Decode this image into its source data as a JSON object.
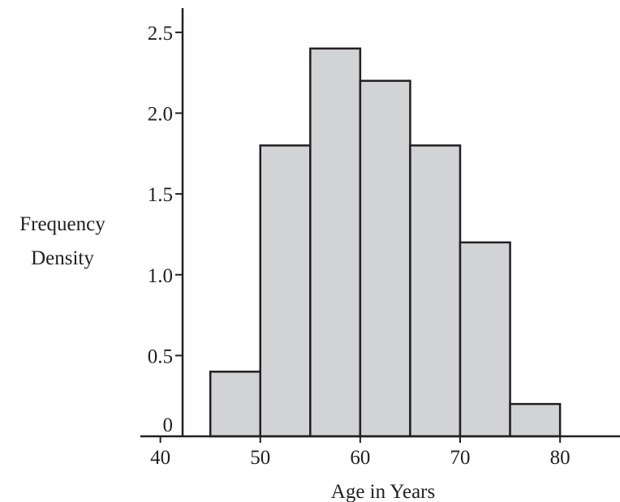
{
  "chart_data": {
    "type": "bar",
    "subtype": "histogram",
    "bins": [
      {
        "from": 45,
        "to": 50,
        "density": 0.4
      },
      {
        "from": 50,
        "to": 55,
        "density": 1.8
      },
      {
        "from": 55,
        "to": 60,
        "density": 2.4
      },
      {
        "from": 60,
        "to": 65,
        "density": 2.2
      },
      {
        "from": 65,
        "to": 70,
        "density": 1.8
      },
      {
        "from": 70,
        "to": 75,
        "density": 1.2
      },
      {
        "from": 75,
        "to": 80,
        "density": 0.2
      }
    ],
    "xlabel": "Age in Years",
    "ylabel_lines": [
      "Frequency",
      "Density"
    ],
    "x_ticks": [
      "40",
      "50",
      "60",
      "70",
      "80"
    ],
    "y_ticks": [
      "0",
      "0.5",
      "1.0",
      "1.5",
      "2.0",
      "2.5"
    ],
    "xlim": [
      38,
      86
    ],
    "ylim": [
      0,
      2.65
    ],
    "grid": false,
    "bar_color": "#d1d3d4",
    "line_color": "#231f20"
  }
}
